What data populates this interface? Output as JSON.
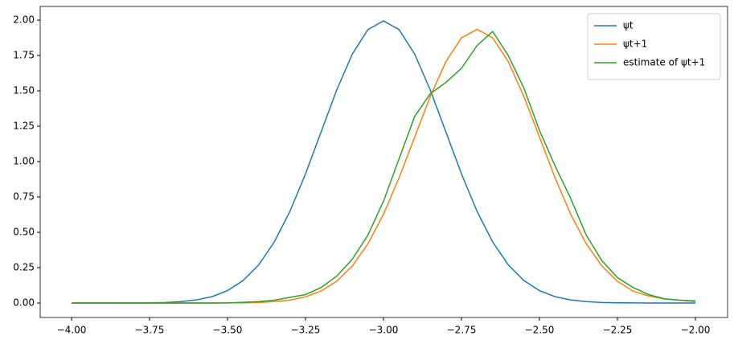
{
  "chart_data": {
    "type": "line",
    "x": [
      -4,
      -3.95,
      -3.9,
      -3.85,
      -3.8,
      -3.75,
      -3.7,
      -3.65,
      -3.6,
      -3.55,
      -3.5,
      -3.45,
      -3.4,
      -3.35,
      -3.3,
      -3.25,
      -3.2,
      -3.15,
      -3.1,
      -3.05,
      -3,
      -2.95,
      -2.9,
      -2.85,
      -2.8,
      -2.75,
      -2.7,
      -2.65,
      -2.6,
      -2.55,
      -2.5,
      -2.45,
      -2.4,
      -2.35,
      -2.3,
      -2.25,
      -2.2,
      -2.15,
      -2.1,
      -2.05,
      -2
    ],
    "series": [
      {
        "name": "ψt",
        "color": "#1f77b4",
        "values": [
          0,
          0,
          0,
          0,
          0.001,
          0.002,
          0.004,
          0.01,
          0.022,
          0.045,
          0.088,
          0.159,
          0.27,
          0.432,
          0.648,
          0.913,
          1.21,
          1.506,
          1.76,
          1.933,
          1.995,
          1.933,
          1.76,
          1.506,
          1.21,
          0.913,
          0.648,
          0.432,
          0.27,
          0.159,
          0.088,
          0.045,
          0.022,
          0.01,
          0.004,
          0.002,
          0.001,
          0,
          0,
          0,
          0
        ]
      },
      {
        "name": "ψt+1",
        "color": "#ff7f0e",
        "values": [
          0,
          0,
          0,
          0,
          0,
          0,
          0,
          0,
          0,
          0,
          0.001,
          0.002,
          0.004,
          0.01,
          0.021,
          0.044,
          0.085,
          0.154,
          0.262,
          0.419,
          0.628,
          0.886,
          1.174,
          1.461,
          1.707,
          1.875,
          1.935,
          1.875,
          1.707,
          1.461,
          1.174,
          0.886,
          0.628,
          0.419,
          0.262,
          0.154,
          0.085,
          0.05,
          0.03,
          0.02,
          0.01
        ]
      },
      {
        "name": "estimate of ψt+1",
        "color": "#2ca02c",
        "values": [
          0,
          0,
          0,
          0,
          0,
          0,
          0,
          0,
          0,
          0,
          0.001,
          0.005,
          0.01,
          0.02,
          0.04,
          0.06,
          0.11,
          0.19,
          0.31,
          0.48,
          0.72,
          1.02,
          1.32,
          1.48,
          1.56,
          1.66,
          1.82,
          1.92,
          1.75,
          1.52,
          1.22,
          0.97,
          0.74,
          0.48,
          0.3,
          0.18,
          0.11,
          0.06,
          0.03,
          0.02,
          0.015
        ]
      }
    ],
    "xlim": [
      -4.1005,
      -1.897
    ],
    "ylim": [
      -0.102,
      2.097
    ],
    "xticks": [
      {
        "value": -4,
        "label": "−4.00"
      },
      {
        "value": -3.75,
        "label": "−3.75"
      },
      {
        "value": -3.5,
        "label": "−3.50"
      },
      {
        "value": -3.25,
        "label": "−3.25"
      },
      {
        "value": -3,
        "label": "−3.00"
      },
      {
        "value": -2.75,
        "label": "−2.75"
      },
      {
        "value": -2.5,
        "label": "−2.50"
      },
      {
        "value": -2.25,
        "label": "−2.25"
      },
      {
        "value": -2,
        "label": "−2.00"
      }
    ],
    "yticks": [
      {
        "value": 0,
        "label": "0.00"
      },
      {
        "value": 0.25,
        "label": "0.25"
      },
      {
        "value": 0.5,
        "label": "0.50"
      },
      {
        "value": 0.75,
        "label": "0.75"
      },
      {
        "value": 1,
        "label": "1.00"
      },
      {
        "value": 1.25,
        "label": "1.25"
      },
      {
        "value": 1.5,
        "label": "1.50"
      },
      {
        "value": 1.75,
        "label": "1.75"
      },
      {
        "value": 2,
        "label": "2.00"
      }
    ],
    "legend": "upper right"
  }
}
